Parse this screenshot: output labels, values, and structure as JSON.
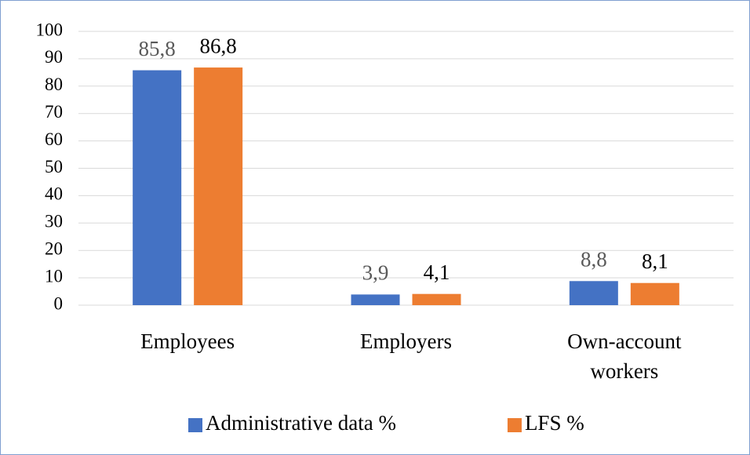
{
  "chart_data": {
    "type": "bar",
    "categories": [
      "Employees",
      "Employers",
      "Own-account workers"
    ],
    "series": [
      {
        "name": "Administrative data %",
        "color": "#4472c4",
        "values": [
          85.8,
          3.9,
          8.8
        ],
        "value_labels": [
          "85,8",
          "3,9",
          "8,8"
        ]
      },
      {
        "name": "LFS %",
        "color": "#ed7d31",
        "values": [
          86.8,
          4.1,
          8.1
        ],
        "value_labels": [
          "86,8",
          "4,1",
          "8,1"
        ]
      }
    ],
    "ylim": [
      0,
      100
    ],
    "yticks": [
      0,
      10,
      20,
      30,
      40,
      50,
      60,
      70,
      80,
      90,
      100
    ],
    "grid": true,
    "legend": "bottom"
  }
}
